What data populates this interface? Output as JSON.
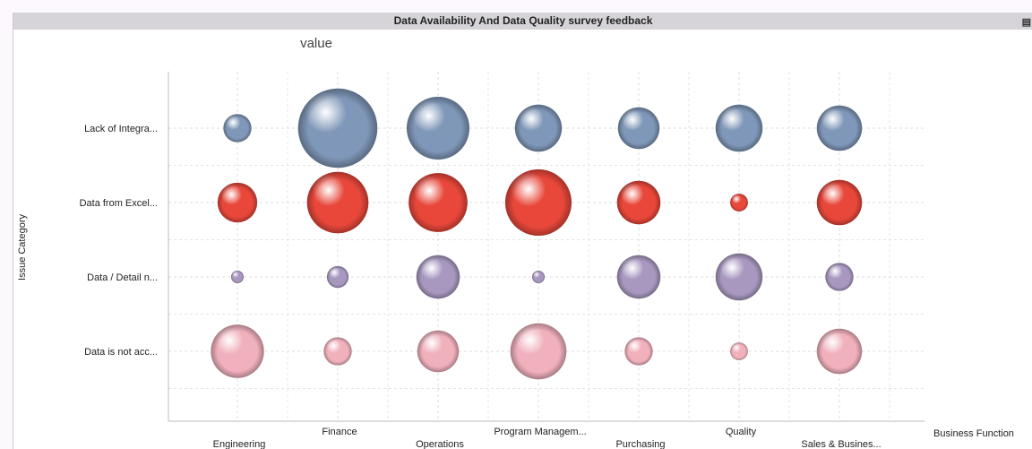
{
  "window": {
    "title": "Data Availability And Data Quality survey feedback"
  },
  "chart_data": {
    "type": "scatter",
    "subtype": "bubble-grid",
    "title": "value",
    "xlabel": "Business Function",
    "ylabel": "Issue Category",
    "categories_x": [
      "Engineering",
      "Finance",
      "Operations",
      "Program Managem...",
      "Purchasing",
      "Quality",
      "Sales & Busines..."
    ],
    "categories_y": [
      "Lack of Integra...",
      "Data from Excel...",
      "Data / Detail n...",
      "Data is not acc..."
    ],
    "grid": true,
    "size_note_relative": true,
    "series": [
      {
        "category": "Lack of Integra...",
        "color": "#7f97b8",
        "values": [
          5,
          40,
          25,
          14,
          11,
          14,
          13
        ]
      },
      {
        "category": "Data from Excel...",
        "color": "#e8473a",
        "values": [
          10,
          24,
          22,
          28,
          12,
          2,
          13
        ]
      },
      {
        "category": "Data / Detail n...",
        "color": "#a898c0",
        "values": [
          1,
          3,
          12,
          1,
          12,
          14,
          5
        ]
      },
      {
        "category": "Data is not acc...",
        "color": "#f0b0bc",
        "values": [
          18,
          5,
          11,
          20,
          5,
          2,
          13
        ]
      }
    ]
  }
}
